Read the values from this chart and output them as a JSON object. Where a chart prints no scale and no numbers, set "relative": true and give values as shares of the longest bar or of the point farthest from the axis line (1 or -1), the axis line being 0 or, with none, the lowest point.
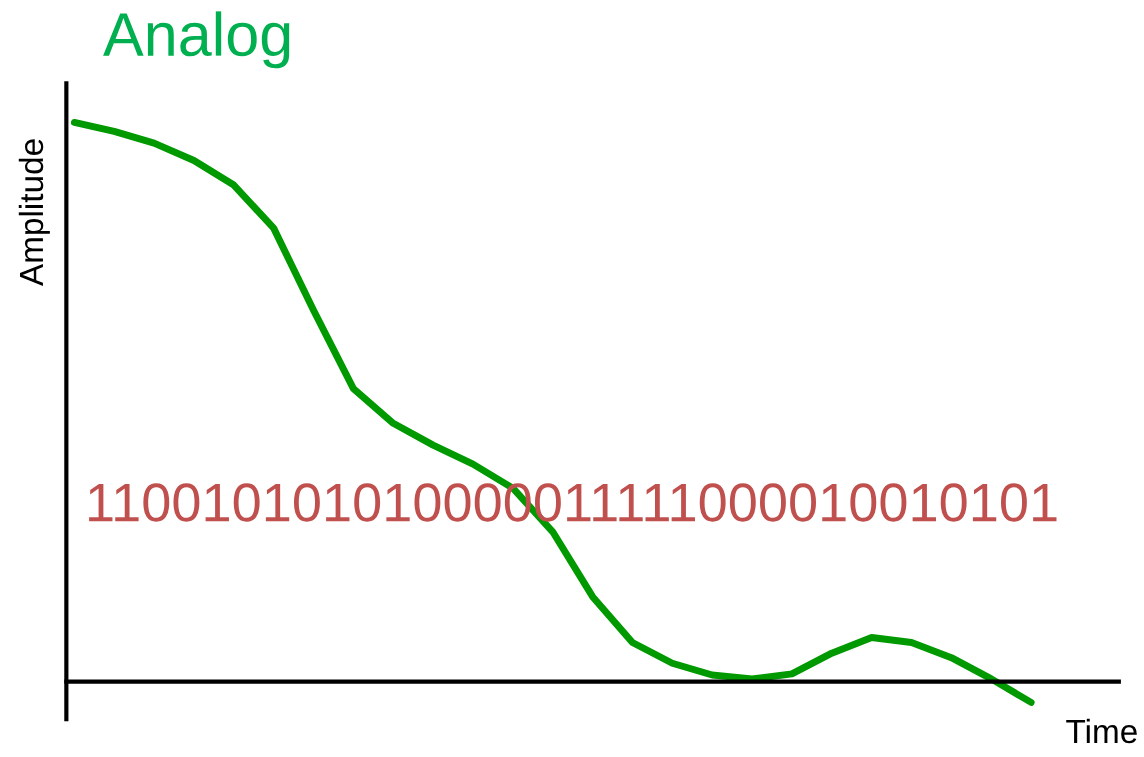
{
  "chart_data": {
    "type": "line",
    "title": "Analog",
    "xlabel": "Time",
    "ylabel": "Amplitude",
    "relative": true,
    "categories": [
      null,
      null,
      null,
      null,
      null,
      null,
      null,
      null,
      null,
      null,
      null,
      null,
      null,
      null,
      null,
      null,
      null,
      null,
      null,
      null,
      null,
      null,
      null,
      null,
      null
    ],
    "series": [
      {
        "color": "#009900",
        "values": [
          1.0,
          0.984,
          0.963,
          0.932,
          0.888,
          0.811,
          0.664,
          0.524,
          0.462,
          0.423,
          0.389,
          0.346,
          0.268,
          0.152,
          0.07,
          0.033,
          0.012,
          0.005,
          0.014,
          0.051,
          0.079,
          0.07,
          0.043,
          0.005,
          -0.037
        ]
      }
    ],
    "annotations": [
      "110010101010000011111000010010101"
    ],
    "grid": false,
    "legend": false,
    "marker": "none",
    "line_style": "solid"
  }
}
